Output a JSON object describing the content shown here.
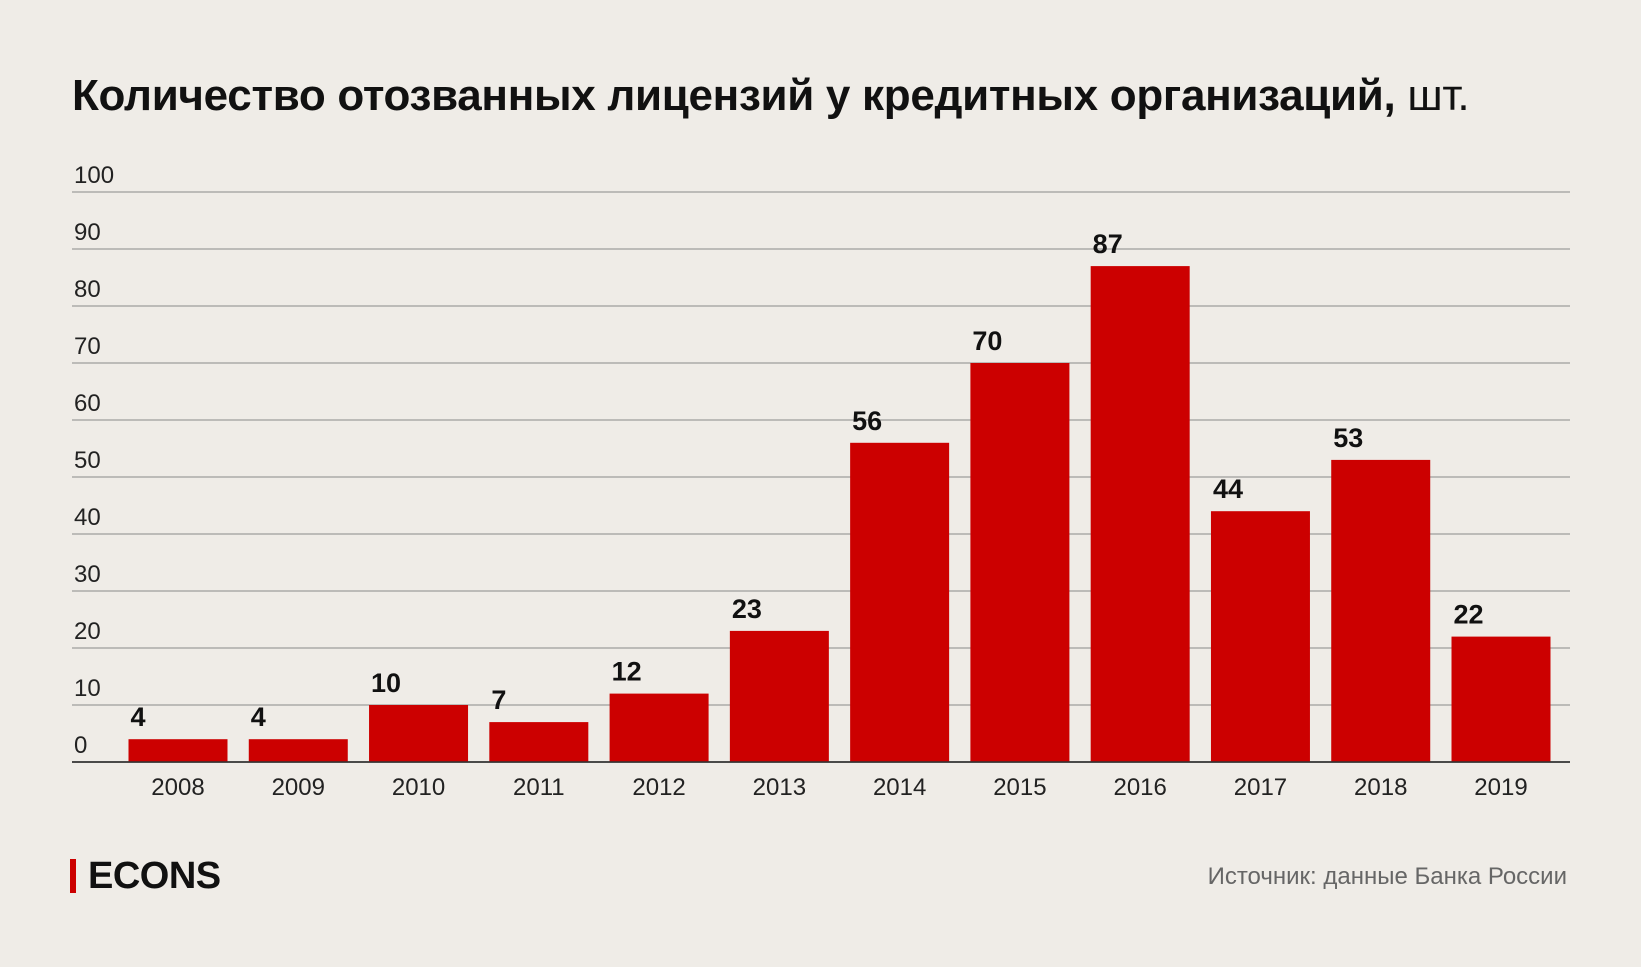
{
  "chart_data": {
    "type": "bar",
    "title": "Количество отозванных лицензий у кредитных организаций,",
    "unit": "шт.",
    "xlabel": "",
    "ylabel": "",
    "categories": [
      "2008",
      "2009",
      "2010",
      "2011",
      "2012",
      "2013",
      "2014",
      "2015",
      "2016",
      "2017",
      "2018",
      "2019"
    ],
    "values": [
      4,
      4,
      10,
      7,
      12,
      23,
      56,
      70,
      87,
      44,
      53,
      22
    ],
    "ylim": [
      0,
      100
    ],
    "yticks": [
      "0",
      "10",
      "20",
      "30",
      "40",
      "50",
      "60",
      "70",
      "80",
      "90",
      "100"
    ],
    "grid": true,
    "legend": "none",
    "bar_color": "#cc0000"
  },
  "brand": {
    "name": "ECONS",
    "accent": "#cc0000"
  },
  "source": "Источник: данные Банка России"
}
